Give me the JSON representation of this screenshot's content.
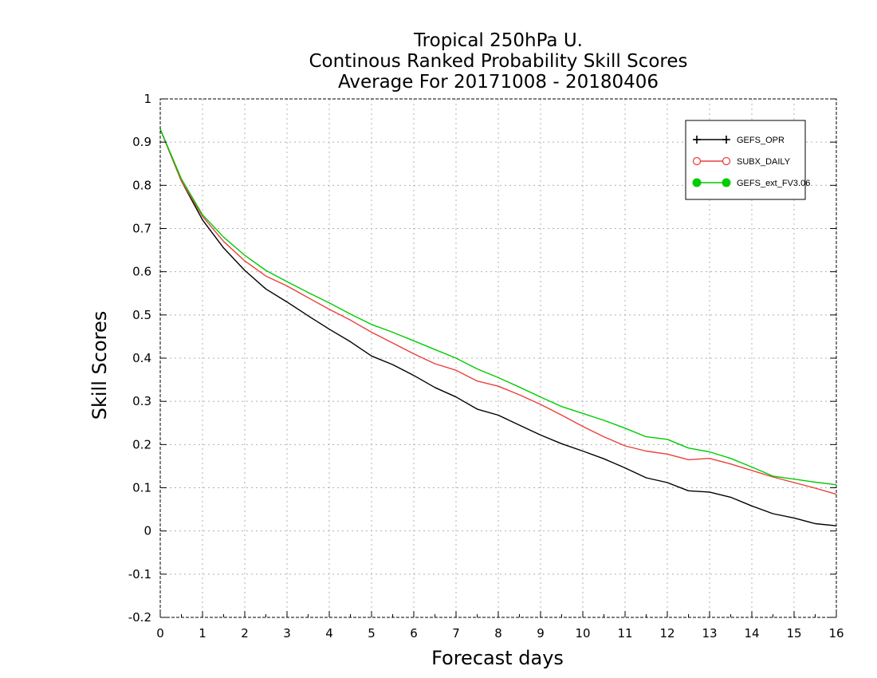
{
  "chart_data": {
    "type": "line",
    "title": [
      "Tropical 250hPa U.",
      "Continous Ranked Probability Skill Scores",
      "Average For 20171008 - 20180406"
    ],
    "xlabel": "Forecast days",
    "ylabel": "Skill Scores",
    "xlim": [
      0,
      16
    ],
    "ylim": [
      -0.2,
      1
    ],
    "xticks": [
      0,
      1,
      2,
      3,
      4,
      5,
      6,
      7,
      8,
      9,
      10,
      11,
      12,
      13,
      14,
      15,
      16
    ],
    "yticks": [
      -0.2,
      -0.1,
      0,
      0.1,
      0.2,
      0.3,
      0.4,
      0.5,
      0.6,
      0.7,
      0.8,
      0.9,
      1
    ],
    "ytick_labels": [
      "-0.2",
      "-0.1",
      "0",
      "0.1",
      "0.2",
      "0.3",
      "0.4",
      "0.5",
      "0.6",
      "0.7",
      "0.8",
      "0.9",
      "1"
    ],
    "grid": true,
    "legend_position": "top-right",
    "x": [
      0,
      0.5,
      1,
      1.5,
      2,
      2.5,
      3,
      3.5,
      4,
      4.5,
      5,
      5.5,
      6,
      6.5,
      7,
      7.5,
      8,
      8.5,
      9,
      9.5,
      10,
      10.5,
      11,
      11.5,
      12,
      12.5,
      13,
      13.5,
      14,
      14.5,
      15,
      15.5,
      16
    ],
    "series": [
      {
        "name": "GEFS_OPR",
        "color": "#000000",
        "marker": "plus",
        "values": [
          0.93,
          0.81,
          0.72,
          0.655,
          0.603,
          0.56,
          0.53,
          0.498,
          0.467,
          0.438,
          0.405,
          0.385,
          0.36,
          0.332,
          0.31,
          0.282,
          0.268,
          0.245,
          0.222,
          0.202,
          0.185,
          0.167,
          0.146,
          0.123,
          0.112,
          0.093,
          0.09,
          0.078,
          0.058,
          0.04,
          0.03,
          0.017,
          0.012
        ]
      },
      {
        "name": "SUBX_DAILY",
        "color": "#e8413c",
        "marker": "open-circle",
        "values": [
          0.93,
          0.81,
          0.728,
          0.67,
          0.625,
          0.59,
          0.567,
          0.54,
          0.513,
          0.488,
          0.46,
          0.435,
          0.41,
          0.387,
          0.372,
          0.347,
          0.335,
          0.315,
          0.293,
          0.268,
          0.242,
          0.218,
          0.197,
          0.185,
          0.178,
          0.165,
          0.168,
          0.155,
          0.14,
          0.125,
          0.112,
          0.099,
          0.085
        ]
      },
      {
        "name": "GEFS_ext_FV3.06",
        "color": "#00cc00",
        "marker": "filled-circle",
        "values": [
          0.93,
          0.815,
          0.732,
          0.68,
          0.638,
          0.603,
          0.577,
          0.552,
          0.528,
          0.502,
          0.478,
          0.46,
          0.44,
          0.42,
          0.4,
          0.375,
          0.355,
          0.333,
          0.31,
          0.288,
          0.272,
          0.256,
          0.238,
          0.218,
          0.212,
          0.192,
          0.183,
          0.168,
          0.148,
          0.127,
          0.12,
          0.113,
          0.107
        ]
      }
    ]
  }
}
